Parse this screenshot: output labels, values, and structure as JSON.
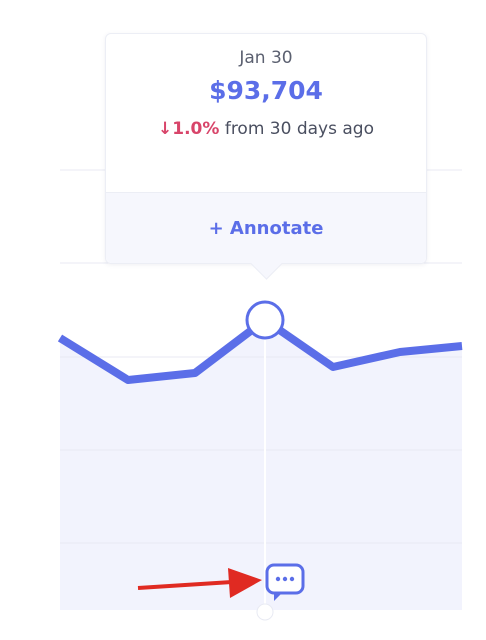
{
  "tooltip": {
    "date": "Jan 30",
    "value": "$93,704",
    "change": "1.0%",
    "change_text": "from 30 days ago",
    "action": "+ Annotate"
  }
}
